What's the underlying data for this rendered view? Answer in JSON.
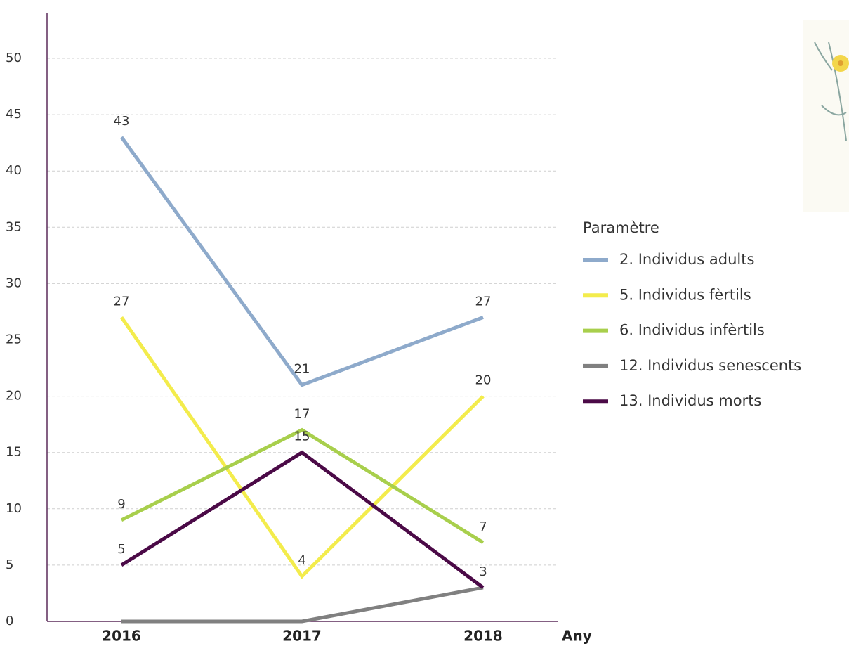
{
  "chart_data": {
    "type": "line",
    "x_label": "Any",
    "legend_title": "Paramètre",
    "categories": [
      "2016",
      "2017",
      "2018"
    ],
    "ylim": [
      0,
      54
    ],
    "yticks": [
      0,
      5,
      10,
      15,
      20,
      25,
      30,
      35,
      40,
      45,
      50
    ],
    "grid": true,
    "series": [
      {
        "name": "2. Individus adults",
        "color": "#8eaacb",
        "values": [
          43,
          21,
          27
        ]
      },
      {
        "name": "5. Individus fèrtils",
        "color": "#f3ec4c",
        "values": [
          27,
          4,
          20
        ]
      },
      {
        "name": "6. Individus infèrtils",
        "color": "#a8cf4c",
        "values": [
          9,
          17,
          7
        ]
      },
      {
        "name": "12. Individus senescents",
        "color": "#808080",
        "values": [
          0,
          0,
          3
        ],
        "value_labels": [
          null,
          null,
          null
        ]
      },
      {
        "name": "13. Individus morts",
        "color": "#4b0a47",
        "values": [
          5,
          15,
          3
        ]
      }
    ]
  }
}
